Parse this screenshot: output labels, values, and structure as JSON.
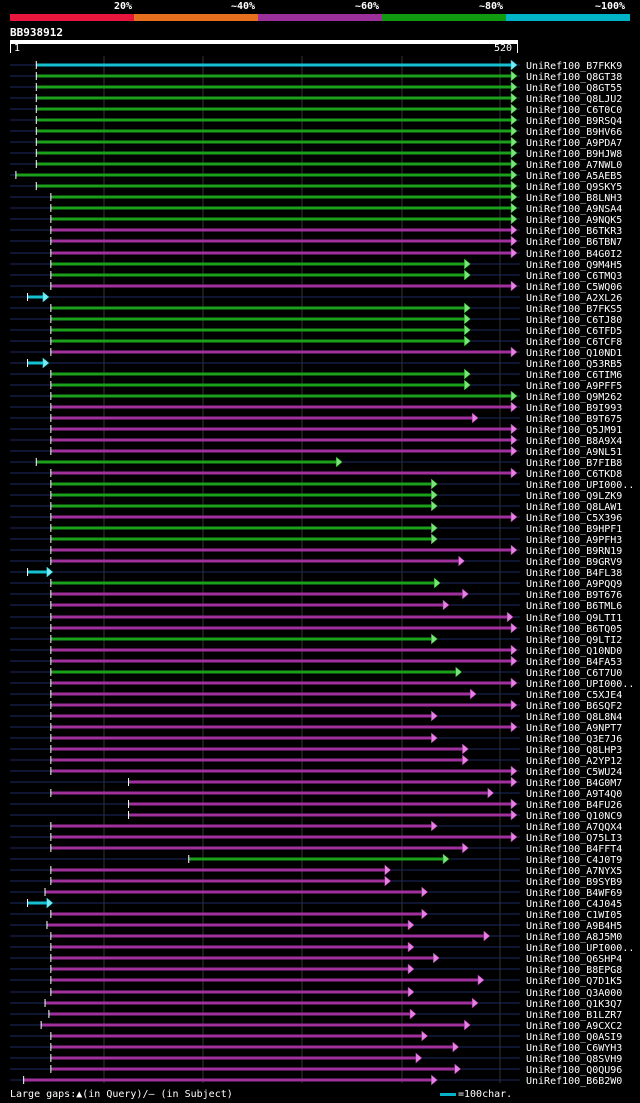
{
  "legend": {
    "labels": [
      "20%",
      "~40%",
      "~60%",
      "~80%",
      "~100%"
    ],
    "colors": [
      "#e8163c",
      "#e6701e",
      "#9b2f9b",
      "#0f9a0f",
      "#00b4c8"
    ]
  },
  "query": {
    "id": "BB938912",
    "start": "1",
    "end": "520"
  },
  "footer": {
    "large_gaps": "Large gaps:▲(in Query)/– (in Subject)",
    "scale": "=100char."
  },
  "chart_data": {
    "type": "table",
    "query_length": 520,
    "hits": [
      {
        "name": "UniRef100_B7FKK9",
        "color": "cyan",
        "s": 25,
        "e": 520,
        "left_bar": false
      },
      {
        "name": "UniRef100_Q8GT38",
        "color": "green",
        "s": 25,
        "e": 520
      },
      {
        "name": "UniRef100_Q8GT55",
        "color": "green",
        "s": 25,
        "e": 520
      },
      {
        "name": "UniRef100_Q8LJU2",
        "color": "green",
        "s": 25,
        "e": 520
      },
      {
        "name": "UniRef100_C6T0C0",
        "color": "green",
        "s": 25,
        "e": 520
      },
      {
        "name": "UniRef100_B9RSQ4",
        "color": "green",
        "s": 25,
        "e": 520
      },
      {
        "name": "UniRef100_B9HV66",
        "color": "green",
        "s": 25,
        "e": 520
      },
      {
        "name": "UniRef100_A9PDA7",
        "color": "green",
        "s": 25,
        "e": 520
      },
      {
        "name": "UniRef100_B9HJW8",
        "color": "green",
        "s": 25,
        "e": 520
      },
      {
        "name": "UniRef100_A7NWL0",
        "color": "green",
        "s": 25,
        "e": 520
      },
      {
        "name": "UniRef100_A5AEB5",
        "color": "green",
        "s": 4,
        "e": 520
      },
      {
        "name": "UniRef100_Q9SKY5",
        "color": "green",
        "s": 25,
        "e": 520
      },
      {
        "name": "UniRef100_B8LNH3",
        "color": "green",
        "s": 40,
        "e": 520
      },
      {
        "name": "UniRef100_A9NSA4",
        "color": "green",
        "s": 40,
        "e": 520
      },
      {
        "name": "UniRef100_A9NQK5",
        "color": "green",
        "s": 40,
        "e": 520
      },
      {
        "name": "UniRef100_B6TKR3",
        "color": "purple",
        "s": 40,
        "e": 520
      },
      {
        "name": "UniRef100_B6TBN7",
        "color": "purple",
        "s": 40,
        "e": 520
      },
      {
        "name": "UniRef100_B4G0I2",
        "color": "purple",
        "s": 40,
        "e": 520
      },
      {
        "name": "UniRef100_Q9M4H5",
        "color": "green",
        "s": 40,
        "e": 472
      },
      {
        "name": "UniRef100_C6TMQ3",
        "color": "green",
        "s": 40,
        "e": 472
      },
      {
        "name": "UniRef100_C5WQ06",
        "color": "purple",
        "s": 40,
        "e": 520
      },
      {
        "name": "UniRef100_A2XL26",
        "color": "cyan",
        "s": 16,
        "e": 38
      },
      {
        "name": "UniRef100_B7FKS5",
        "color": "green",
        "s": 40,
        "e": 472
      },
      {
        "name": "UniRef100_C6TJ80",
        "color": "green",
        "s": 40,
        "e": 472
      },
      {
        "name": "UniRef100_C6TFD5",
        "color": "green",
        "s": 40,
        "e": 472
      },
      {
        "name": "UniRef100_C6TCF8",
        "color": "green",
        "s": 40,
        "e": 472
      },
      {
        "name": "UniRef100_Q10ND1",
        "color": "purple",
        "s": 40,
        "e": 520
      },
      {
        "name": "UniRef100_Q53RB5",
        "color": "cyan",
        "s": 16,
        "e": 38
      },
      {
        "name": "UniRef100_C6TIM6",
        "color": "green",
        "s": 40,
        "e": 472
      },
      {
        "name": "UniRef100_A9PFF5",
        "color": "green",
        "s": 40,
        "e": 472
      },
      {
        "name": "UniRef100_Q9M262",
        "color": "green",
        "s": 40,
        "e": 520
      },
      {
        "name": "UniRef100_B9I993",
        "color": "purple",
        "s": 40,
        "e": 520
      },
      {
        "name": "UniRef100_B9T675",
        "color": "purple",
        "s": 40,
        "e": 480
      },
      {
        "name": "UniRef100_Q5JM91",
        "color": "purple",
        "s": 40,
        "e": 520
      },
      {
        "name": "UniRef100_B8A9X4",
        "color": "purple",
        "s": 40,
        "e": 520
      },
      {
        "name": "UniRef100_A9NL51",
        "color": "purple",
        "s": 40,
        "e": 520
      },
      {
        "name": "UniRef100_B7FIB8",
        "color": "green",
        "s": 25,
        "e": 340
      },
      {
        "name": "UniRef100_C6TKD8",
        "color": "purple",
        "s": 40,
        "e": 520
      },
      {
        "name": "UniRef100_UPI000..",
        "color": "green",
        "s": 40,
        "e": 438
      },
      {
        "name": "UniRef100_Q9LZK9",
        "color": "green",
        "s": 40,
        "e": 438
      },
      {
        "name": "UniRef100_Q8LAW1",
        "color": "green",
        "s": 40,
        "e": 438
      },
      {
        "name": "UniRef100_C5X396",
        "color": "purple",
        "s": 40,
        "e": 520
      },
      {
        "name": "UniRef100_B9HPF1",
        "color": "green",
        "s": 40,
        "e": 438
      },
      {
        "name": "UniRef100_A9PFH3",
        "color": "green",
        "s": 40,
        "e": 438
      },
      {
        "name": "UniRef100_B9RN19",
        "color": "purple",
        "s": 40,
        "e": 520
      },
      {
        "name": "UniRef100_B9GRV9",
        "color": "purple",
        "s": 40,
        "e": 466
      },
      {
        "name": "UniRef100_B4FL38",
        "color": "cyan",
        "s": 16,
        "e": 42
      },
      {
        "name": "UniRef100_A9PQQ9",
        "color": "green",
        "s": 40,
        "e": 441
      },
      {
        "name": "UniRef100_B9T676",
        "color": "purple",
        "s": 40,
        "e": 470
      },
      {
        "name": "UniRef100_B6TML6",
        "color": "purple",
        "s": 40,
        "e": 450
      },
      {
        "name": "UniRef100_Q9LTI1",
        "color": "purple",
        "s": 40,
        "e": 516
      },
      {
        "name": "UniRef100_B6TQ05",
        "color": "purple",
        "s": 40,
        "e": 520
      },
      {
        "name": "UniRef100_Q9LTI2",
        "color": "green",
        "s": 40,
        "e": 438
      },
      {
        "name": "UniRef100_Q10ND0",
        "color": "purple",
        "s": 40,
        "e": 520
      },
      {
        "name": "UniRef100_B4FA53",
        "color": "purple",
        "s": 40,
        "e": 520
      },
      {
        "name": "UniRef100_C6T7U0",
        "color": "green",
        "s": 40,
        "e": 463
      },
      {
        "name": "UniRef100_UPI000..",
        "color": "purple",
        "s": 40,
        "e": 520
      },
      {
        "name": "UniRef100_C5XJE4",
        "color": "purple",
        "s": 40,
        "e": 478
      },
      {
        "name": "UniRef100_B6SQF2",
        "color": "purple",
        "s": 40,
        "e": 520
      },
      {
        "name": "UniRef100_Q8L8N4",
        "color": "purple",
        "s": 40,
        "e": 438
      },
      {
        "name": "UniRef100_A9NPT7",
        "color": "purple",
        "s": 40,
        "e": 520
      },
      {
        "name": "UniRef100_Q3E7J6",
        "color": "purple",
        "s": 40,
        "e": 438
      },
      {
        "name": "UniRef100_Q8LHP3",
        "color": "purple",
        "s": 40,
        "e": 470
      },
      {
        "name": "UniRef100_A2YP12",
        "color": "purple",
        "s": 40,
        "e": 470
      },
      {
        "name": "UniRef100_C5WU24",
        "color": "purple",
        "s": 40,
        "e": 520
      },
      {
        "name": "UniRef100_B4G0M7",
        "color": "purple",
        "s": 120,
        "e": 520
      },
      {
        "name": "UniRef100_A9T4Q0",
        "color": "purple",
        "s": 40,
        "e": 496
      },
      {
        "name": "UniRef100_B4FU26",
        "color": "purple",
        "s": 120,
        "e": 520
      },
      {
        "name": "UniRef100_Q10NC9",
        "color": "purple",
        "s": 120,
        "e": 520
      },
      {
        "name": "UniRef100_A7QQX4",
        "color": "purple",
        "s": 40,
        "e": 438
      },
      {
        "name": "UniRef100_Q75LI3",
        "color": "purple",
        "s": 40,
        "e": 520
      },
      {
        "name": "UniRef100_B4FFT4",
        "color": "purple",
        "s": 40,
        "e": 470
      },
      {
        "name": "UniRef100_C4J0T9",
        "color": "green",
        "s": 182,
        "e": 450
      },
      {
        "name": "UniRef100_A7NYX5",
        "color": "purple",
        "s": 40,
        "e": 390
      },
      {
        "name": "UniRef100_B9SYB9",
        "color": "purple",
        "s": 40,
        "e": 390
      },
      {
        "name": "UniRef100_B4WF69",
        "color": "purple",
        "s": 34,
        "e": 428
      },
      {
        "name": "UniRef100_C4J045",
        "color": "cyan",
        "s": 16,
        "e": 42
      },
      {
        "name": "UniRef100_C1WI05",
        "color": "purple",
        "s": 40,
        "e": 428
      },
      {
        "name": "UniRef100_A9B4H5",
        "color": "purple",
        "s": 36,
        "e": 414
      },
      {
        "name": "UniRef100_A8J5M0",
        "color": "purple",
        "s": 40,
        "e": 492
      },
      {
        "name": "UniRef100_UPI000..",
        "color": "purple",
        "s": 40,
        "e": 414
      },
      {
        "name": "UniRef100_Q6SHP4",
        "color": "purple",
        "s": 40,
        "e": 440
      },
      {
        "name": "UniRef100_B8EPG8",
        "color": "purple",
        "s": 40,
        "e": 414
      },
      {
        "name": "UniRef100_Q7D1K5",
        "color": "purple",
        "s": 40,
        "e": 486
      },
      {
        "name": "UniRef100_Q3A000",
        "color": "purple",
        "s": 40,
        "e": 414
      },
      {
        "name": "UniRef100_Q1K3Q7",
        "color": "purple",
        "s": 34,
        "e": 480
      },
      {
        "name": "UniRef100_B1LZR7",
        "color": "purple",
        "s": 38,
        "e": 416
      },
      {
        "name": "UniRef100_A9CXC2",
        "color": "purple",
        "s": 30,
        "e": 472
      },
      {
        "name": "UniRef100_Q0ASI9",
        "color": "purple",
        "s": 40,
        "e": 428
      },
      {
        "name": "UniRef100_C6WYH3",
        "color": "purple",
        "s": 40,
        "e": 460
      },
      {
        "name": "UniRef100_Q8SVH9",
        "color": "purple",
        "s": 40,
        "e": 422
      },
      {
        "name": "UniRef100_Q0QU96",
        "color": "purple",
        "s": 40,
        "e": 462
      },
      {
        "name": "UniRef100_B6B2W0",
        "color": "purple",
        "s": 12,
        "e": 438
      }
    ]
  }
}
